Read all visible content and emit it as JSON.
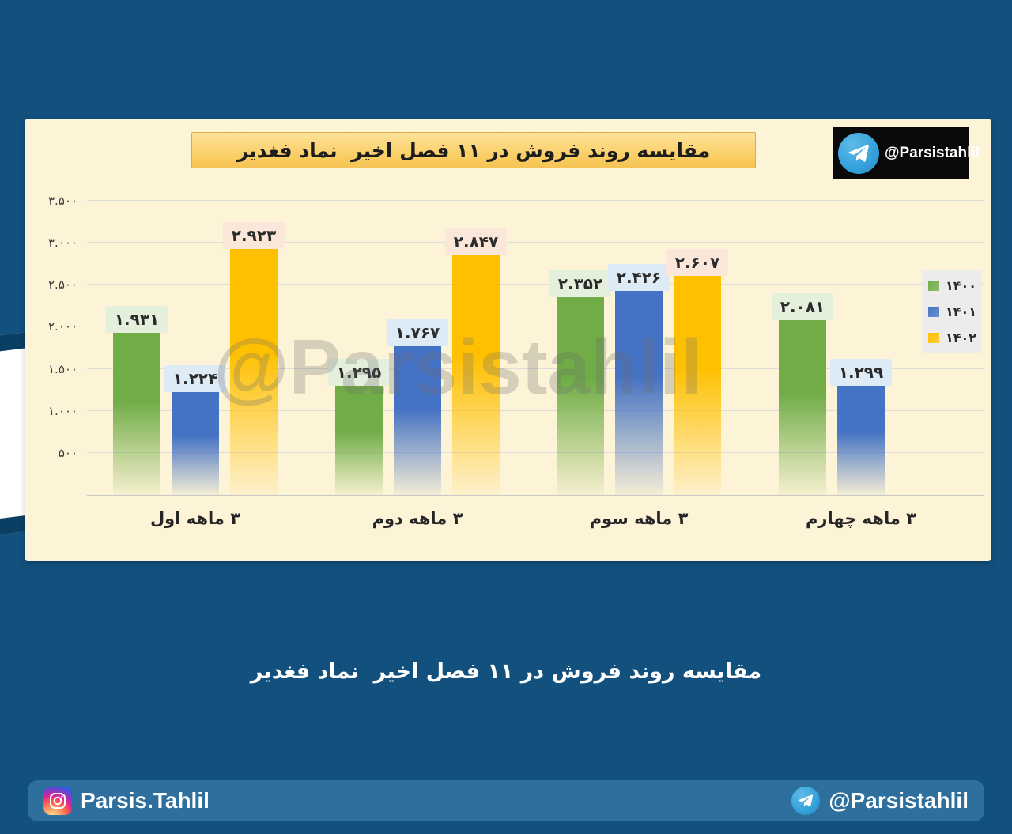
{
  "page": {
    "background_color": "#12507E",
    "caption": "مقایسه روند فروش در ۱۱ فصل اخیر  نماد فغدیر"
  },
  "card": {
    "title": "مقایسه روند فروش در ۱۱ فصل اخیر  نماد فغدیر",
    "title_bg": "#FACD62",
    "badge_handle": "@Parsistahlil",
    "badge_bg": "#0A0A0A",
    "watermark": "@Parsistahlil",
    "card_bg": "#FDF3D6"
  },
  "chart_data": {
    "type": "bar",
    "title": "مقایسه روند فروش در ۱۱ فصل اخیر  نماد فغدیر",
    "categories": [
      "۳ ماهه اول",
      "۳ ماهه دوم",
      "۳ ماهه سوم",
      "۳ ماهه چهارم"
    ],
    "series": [
      {
        "name": "۱۴۰۰",
        "color": "#70AD47",
        "label_bg": "#E5F0DC",
        "values": [
          1931,
          1295,
          2352,
          2081
        ],
        "labels": [
          "۱.۹۳۱",
          "۱.۲۹۵",
          "۲.۳۵۲",
          "۲.۰۸۱"
        ]
      },
      {
        "name": "۱۴۰۱",
        "color": "#4472C4",
        "label_bg": "#DDEBF7",
        "values": [
          1224,
          1767,
          2426,
          1299
        ],
        "labels": [
          "۱.۲۲۴",
          "۱.۷۶۷",
          "۲.۴۲۶",
          "۱.۲۹۹"
        ]
      },
      {
        "name": "۱۴۰۲",
        "color": "#FFC000",
        "label_bg": "#FBE7DA",
        "values": [
          2923,
          2847,
          2607,
          null
        ],
        "labels": [
          "۲.۹۲۳",
          "۲.۸۴۷",
          "۲.۶۰۷",
          null
        ]
      }
    ],
    "y_ticks": [
      {
        "value": 3500,
        "label": "۳.۵۰۰"
      },
      {
        "value": 3000,
        "label": "۳.۰۰۰"
      },
      {
        "value": 2500,
        "label": "۲.۵۰۰"
      },
      {
        "value": 2000,
        "label": "۲.۰۰۰"
      },
      {
        "value": 1500,
        "label": "۱.۵۰۰"
      },
      {
        "value": 1000,
        "label": "۱.۰۰۰"
      },
      {
        "value": 500,
        "label": "۵۰۰"
      }
    ],
    "ylim": [
      0,
      3500
    ],
    "grid": true,
    "legend_position": "right"
  },
  "footer": {
    "instagram_handle": "Parsis.Tahlil",
    "telegram_handle": "@Parsistahlil"
  }
}
